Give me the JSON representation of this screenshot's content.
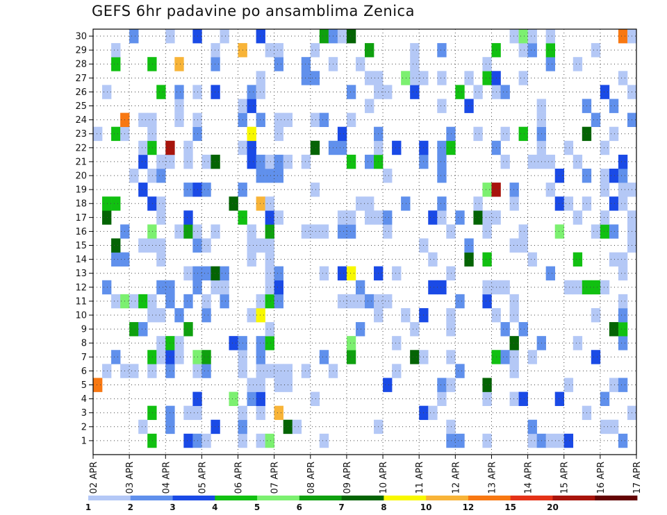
{
  "chart_data": {
    "type": "heatmap",
    "title": "GEFS 6hr padavine po ansamblima Zenica",
    "x_ticks": [
      "02 APR",
      "03 APR",
      "04 APR",
      "05 APR",
      "06 APR",
      "07 APR",
      "08 APR",
      "09 APR",
      "10 APR",
      "11 APR",
      "12 APR",
      "13 APR",
      "14 APR",
      "15 APR",
      "16 APR",
      "17 APR"
    ],
    "y_range": [
      0,
      30
    ],
    "y_ticks": [
      1,
      2,
      3,
      4,
      5,
      6,
      7,
      8,
      9,
      10,
      11,
      12,
      13,
      14,
      15,
      16,
      17,
      18,
      19,
      20,
      21,
      22,
      23,
      24,
      25,
      26,
      27,
      28,
      29,
      30
    ],
    "members": [
      1,
      2,
      3,
      4,
      5,
      6,
      7,
      8,
      9,
      10,
      11,
      12,
      13,
      14,
      15,
      16,
      17,
      18,
      19,
      20,
      21,
      22,
      23,
      24,
      25,
      26,
      27,
      28,
      29,
      30
    ],
    "time_steps_per_day": 4,
    "grid": true,
    "colorbar": {
      "levels": [
        "1",
        "2",
        "3",
        "4",
        "5",
        "6",
        "7",
        "8",
        "10",
        "12",
        "15",
        "20"
      ],
      "colors": [
        "#b4c8f6",
        "#6090ec",
        "#1a4ae6",
        "#11c011",
        "#7cf070",
        "#0fa00f",
        "#046404",
        "#f8f800",
        "#f8b438",
        "#f87812",
        "#e43218",
        "#a8140c",
        "#640404"
      ]
    },
    "legend_position": "bottom"
  }
}
